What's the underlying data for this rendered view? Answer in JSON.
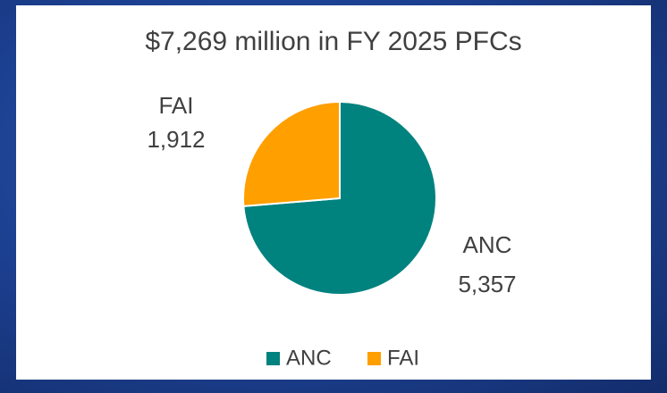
{
  "chart_data": {
    "type": "pie",
    "title": "$7,269 million in FY 2025 PFCs",
    "categories": [
      "ANC",
      "FAI"
    ],
    "values": [
      5357,
      1912
    ],
    "value_labels": [
      "5,357",
      "1,912"
    ],
    "colors": [
      "#00827f",
      "#ff9f00"
    ],
    "legend": "bottom"
  }
}
